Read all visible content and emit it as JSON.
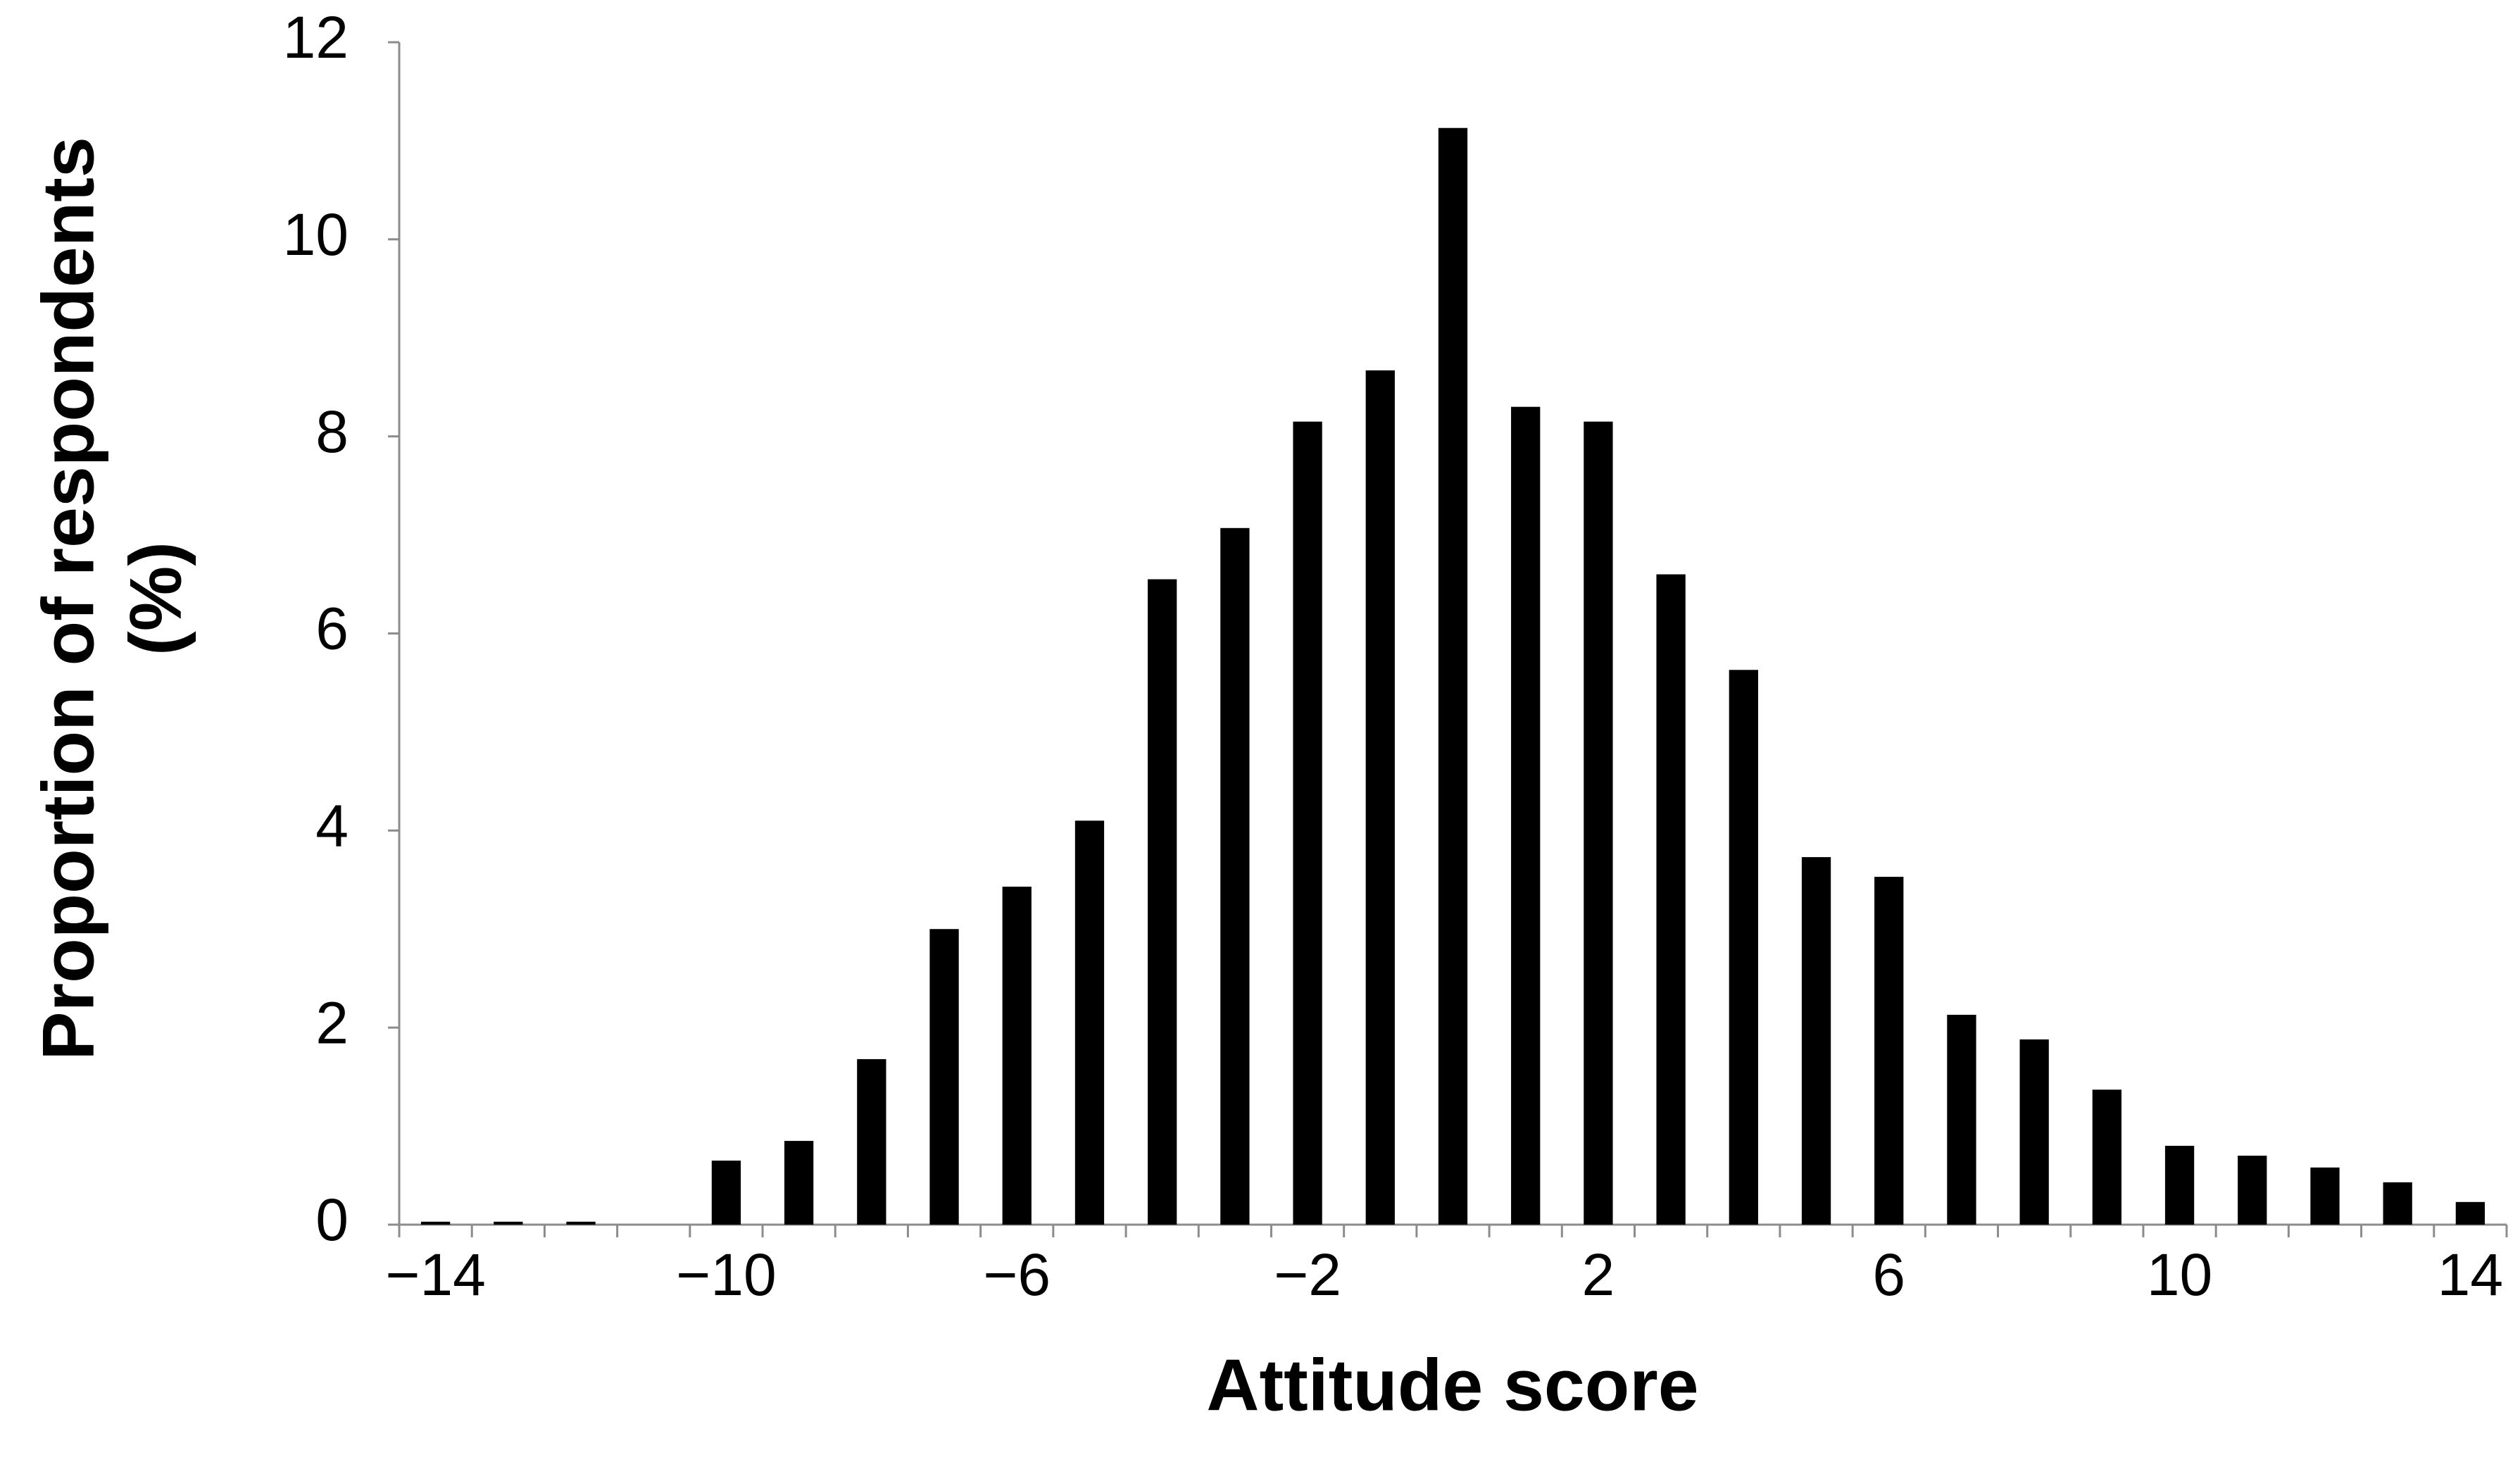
{
  "chart_data": {
    "type": "bar",
    "xlabel": "Attitude score",
    "ylabel": [
      "Proportion of respondents",
      "(%)"
    ],
    "categories": [
      "−14",
      null,
      null,
      null,
      "−10",
      null,
      null,
      null,
      "−6",
      null,
      null,
      null,
      "−2",
      null,
      null,
      null,
      "2",
      null,
      null,
      null,
      "6",
      null,
      null,
      null,
      "10",
      null,
      null,
      null,
      "14"
    ],
    "values": [
      0.03,
      0.03,
      0.03,
      0,
      0.65,
      0.85,
      1.68,
      3.0,
      3.43,
      4.1,
      6.55,
      7.07,
      8.15,
      8.67,
      11.13,
      8.3,
      8.15,
      6.6,
      5.63,
      3.73,
      3.53,
      2.13,
      1.88,
      1.37,
      0.8,
      0.7,
      0.58,
      0.43,
      0.23
    ],
    "color": "#000000",
    "ylim": [
      0,
      12
    ],
    "yticks": [
      0,
      2,
      4,
      6,
      8,
      10,
      12
    ],
    "grid": false
  }
}
